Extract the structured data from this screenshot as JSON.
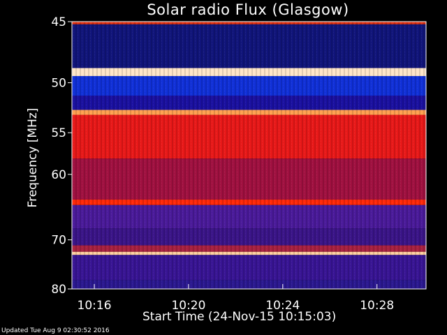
{
  "chart_data": {
    "type": "heatmap",
    "title": "Solar radio Flux (Glasgow)",
    "xlabel": "Start Time (24-Nov-15 10:15:03)",
    "ylabel": "Frequency [MHz]",
    "xlim": [
      "10:15:03",
      "10:30:05"
    ],
    "ylim": [
      45,
      80
    ],
    "x_ticks": [
      "10:16",
      "10:20",
      "10:24",
      "10:28"
    ],
    "y_ticks": [
      45,
      50,
      55,
      60,
      70,
      80
    ],
    "bands": [
      {
        "from": 45,
        "to": 45.2,
        "color": "#e03010"
      },
      {
        "from": 45.2,
        "to": 48.7,
        "color": "#10147a"
      },
      {
        "from": 48.7,
        "to": 49.4,
        "color": "#ffe6c8"
      },
      {
        "from": 49.4,
        "to": 51.2,
        "color": "#1030d8"
      },
      {
        "from": 51.2,
        "to": 52.6,
        "color": "#1a10a0"
      },
      {
        "from": 52.6,
        "to": 53.1,
        "color": "#ffa050"
      },
      {
        "from": 53.1,
        "to": 58.0,
        "color": "#e81818"
      },
      {
        "from": 58.0,
        "to": 63.5,
        "color": "#a01040"
      },
      {
        "from": 63.5,
        "to": 64.3,
        "color": "#ff2808"
      },
      {
        "from": 64.3,
        "to": 68.0,
        "color": "#4a1a9a"
      },
      {
        "from": 68.0,
        "to": 71.0,
        "color": "#3a1488"
      },
      {
        "from": 71.0,
        "to": 72.2,
        "color": "#a82040"
      },
      {
        "from": 72.2,
        "to": 72.8,
        "color": "#ffd0a0"
      },
      {
        "from": 72.8,
        "to": 78.0,
        "color": "#381494"
      },
      {
        "from": 78.0,
        "to": 80.0,
        "color": "#2a1890"
      }
    ]
  },
  "footer": "Updated Tue Aug  9 02:30:52 2016"
}
